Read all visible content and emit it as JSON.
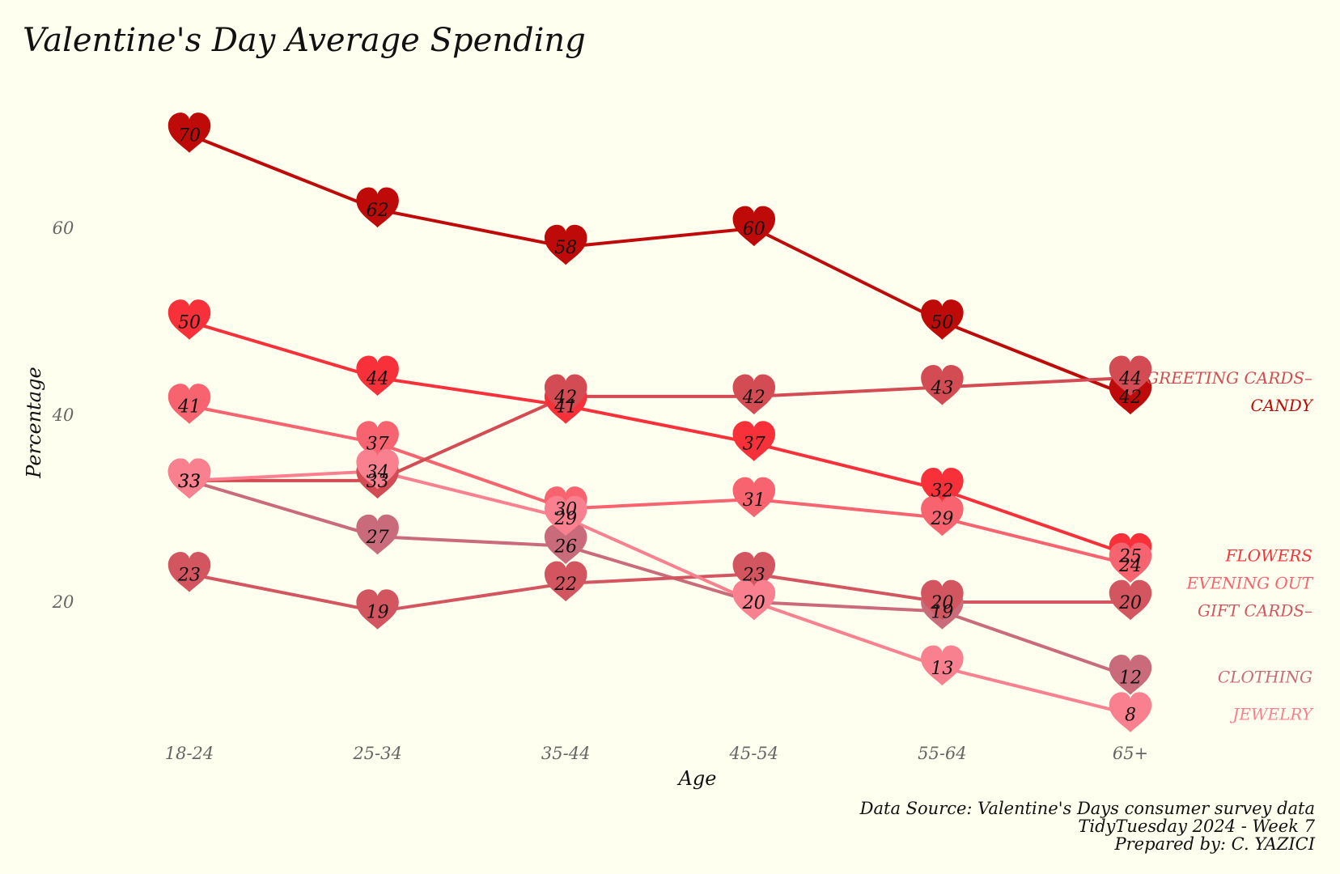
{
  "chart_data": {
    "type": "line",
    "title": "Valentine's Day Average Spending",
    "xlabel": "Age",
    "ylabel": "Percentage",
    "categories": [
      "18-24",
      "25-34",
      "35-44",
      "45-54",
      "55-64",
      "65+"
    ],
    "yticks": [
      20,
      40,
      60
    ],
    "ylim": [
      5,
      75
    ],
    "grid": false,
    "legend": "direct labels at right end of lines",
    "marker": "heart",
    "series": [
      {
        "name": "CANDY",
        "color": "#BF0A0A",
        "values": [
          70,
          62,
          58,
          60,
          50,
          42
        ],
        "label_suffix": ""
      },
      {
        "name": "FLOWERS",
        "color": "#F7303A",
        "values": [
          50,
          44,
          41,
          37,
          32,
          25
        ],
        "label_suffix": ""
      },
      {
        "name": "EVENING OUT",
        "color": "#F7636E",
        "values": [
          41,
          37,
          30,
          31,
          29,
          24
        ],
        "label_suffix": ""
      },
      {
        "name": "GREETING CARDS",
        "color": "#D34B53",
        "values": [
          33,
          33,
          42,
          42,
          43,
          44
        ],
        "label_suffix": "–"
      },
      {
        "name": "CLOTHING",
        "color": "#C96B7A",
        "values": [
          33,
          27,
          26,
          20,
          19,
          12
        ],
        "label_suffix": ""
      },
      {
        "name": "GIFT CARDS",
        "color": "#D35560",
        "values": [
          23,
          19,
          22,
          23,
          20,
          20
        ],
        "label_suffix": "–"
      },
      {
        "name": "JEWELRY",
        "color": "#F9808F",
        "values": [
          33,
          34,
          29,
          20,
          13,
          8
        ],
        "label_suffix": ""
      }
    ]
  },
  "caption": {
    "line1": "Data Source: Valentine's Days consumer survey data",
    "line2": "TidyTuesday 2024 - Week 7",
    "line3": "Prepared by: C. YAZICI"
  }
}
